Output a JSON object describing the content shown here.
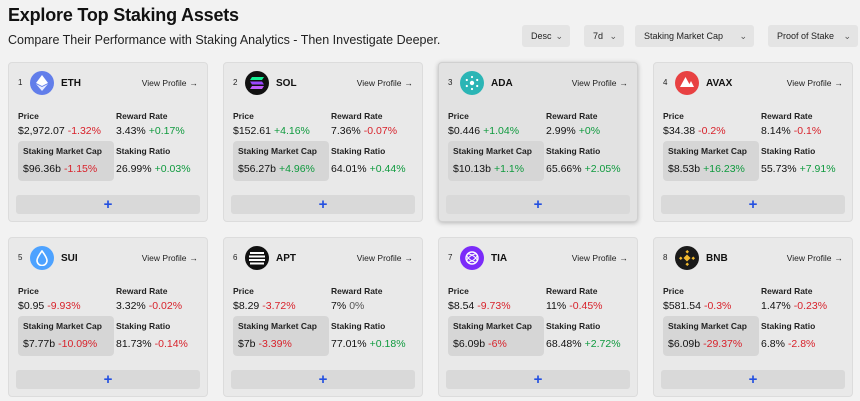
{
  "header": {
    "title": "Explore Top Staking Assets",
    "subtitle": "Compare Their Performance with Staking Analytics - Then Investigate Deeper."
  },
  "filters": {
    "order": "Desc",
    "period": "7d",
    "metric": "Staking Market Cap",
    "consensus": "Proof of Stake"
  },
  "labels": {
    "view_profile": "View Profile",
    "price": "Price",
    "reward_rate": "Reward Rate",
    "staking_market_cap": "Staking Market Cap",
    "staking_ratio": "Staking Ratio",
    "add": "+"
  },
  "assets": [
    {
      "rank": "1",
      "symbol": "ETH",
      "price": "$2,972.07",
      "price_change": "-1.32%",
      "reward_rate": "3.43%",
      "reward_change": "+0.17%",
      "market_cap": "$96.36b",
      "market_cap_change": "-1.15%",
      "staking_ratio": "26.99%",
      "ratio_change": "+0.03%",
      "logo_color": "#627eea",
      "logo_icon": "ethereum-icon"
    },
    {
      "rank": "2",
      "symbol": "SOL",
      "price": "$152.61",
      "price_change": "+4.16%",
      "reward_rate": "7.36%",
      "reward_change": "-0.07%",
      "market_cap": "$56.27b",
      "market_cap_change": "+4.96%",
      "staking_ratio": "64.01%",
      "ratio_change": "+0.44%",
      "logo_color": "#111111",
      "logo_icon": "solana-icon"
    },
    {
      "rank": "3",
      "symbol": "ADA",
      "price": "$0.446",
      "price_change": "+1.04%",
      "reward_rate": "2.99%",
      "reward_change": "+0%",
      "market_cap": "$10.13b",
      "market_cap_change": "+1.1%",
      "staking_ratio": "65.66%",
      "ratio_change": "+2.05%",
      "logo_color": "#2bb5b5",
      "logo_icon": "cardano-icon"
    },
    {
      "rank": "4",
      "symbol": "AVAX",
      "price": "$34.38",
      "price_change": "-0.2%",
      "reward_rate": "8.14%",
      "reward_change": "-0.1%",
      "market_cap": "$8.53b",
      "market_cap_change": "+16.23%",
      "staking_ratio": "55.73%",
      "ratio_change": "+7.91%",
      "logo_color": "#e84142",
      "logo_icon": "avalanche-icon"
    },
    {
      "rank": "5",
      "symbol": "SUI",
      "price": "$0.95",
      "price_change": "-9.93%",
      "reward_rate": "3.32%",
      "reward_change": "-0.02%",
      "market_cap": "$7.77b",
      "market_cap_change": "-10.09%",
      "staking_ratio": "81.73%",
      "ratio_change": "-0.14%",
      "logo_color": "#4da2ff",
      "logo_icon": "sui-drop-icon"
    },
    {
      "rank": "6",
      "symbol": "APT",
      "price": "$8.29",
      "price_change": "-3.72%",
      "reward_rate": "7%",
      "reward_change": "0%",
      "market_cap": "$7b",
      "market_cap_change": "-3.39%",
      "staking_ratio": "77.01%",
      "ratio_change": "+0.18%",
      "logo_color": "#111111",
      "logo_icon": "aptos-icon"
    },
    {
      "rank": "7",
      "symbol": "TIA",
      "price": "$8.54",
      "price_change": "-9.73%",
      "reward_rate": "11%",
      "reward_change": "-0.45%",
      "market_cap": "$6.09b",
      "market_cap_change": "-6%",
      "staking_ratio": "68.48%",
      "ratio_change": "+2.72%",
      "logo_color": "#7b2bf9",
      "logo_icon": "celestia-icon"
    },
    {
      "rank": "8",
      "symbol": "BNB",
      "price": "$581.54",
      "price_change": "-0.3%",
      "reward_rate": "1.47%",
      "reward_change": "-0.23%",
      "market_cap": "$6.09b",
      "market_cap_change": "-29.37%",
      "staking_ratio": "6.8%",
      "ratio_change": "-2.8%",
      "logo_color": "#1a1a1a",
      "logo_icon": "bnb-icon"
    }
  ]
}
